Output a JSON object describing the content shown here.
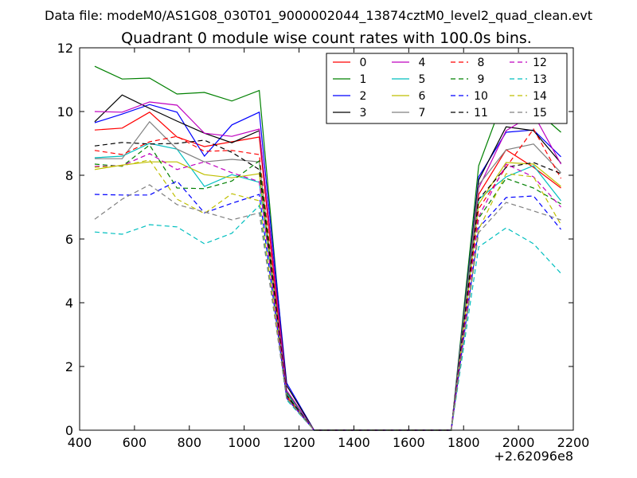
{
  "header": {
    "suptitle": "Data file: modeM0/AS1G08_030T01_9000002044_13874cztM0_level2_quad_clean.evt"
  },
  "chart_data": {
    "type": "line",
    "title": "Quadrant 0 module wise count rates with 100.0s bins.",
    "xlabel": "",
    "ylabel": "",
    "xlim": [
      400,
      2200
    ],
    "ylim": [
      0,
      12
    ],
    "x_offset_label": "+2.62096e8",
    "xticks": [
      400,
      600,
      800,
      1000,
      1200,
      1400,
      1600,
      1800,
      2000,
      2200
    ],
    "yticks": [
      0,
      2,
      4,
      6,
      8,
      10,
      12
    ],
    "x": [
      455,
      555,
      655,
      755,
      855,
      955,
      1055,
      1155,
      1255,
      1355,
      1455,
      1555,
      1655,
      1755,
      1855,
      1955,
      2055,
      2155
    ],
    "legend": {
      "placement": "top-right",
      "columns": 4
    },
    "series": [
      {
        "name": "0",
        "color": "#ff0000",
        "dash": "solid",
        "values": [
          9.42,
          9.48,
          9.98,
          9.2,
          8.9,
          9.05,
          9.2,
          1.05,
          0,
          0,
          0,
          0,
          0,
          0,
          7.4,
          8.8,
          8.25,
          7.6
        ]
      },
      {
        "name": "1",
        "color": "#008000",
        "dash": "solid",
        "values": [
          11.42,
          11.02,
          11.05,
          10.55,
          10.6,
          10.33,
          10.66,
          1.2,
          0,
          0,
          0,
          0,
          0,
          0,
          8.3,
          10.62,
          10.1,
          9.35
        ]
      },
      {
        "name": "2",
        "color": "#0000ff",
        "dash": "solid",
        "values": [
          9.65,
          9.92,
          10.22,
          9.98,
          8.6,
          9.58,
          9.98,
          1.48,
          0,
          0,
          0,
          0,
          0,
          0,
          7.95,
          9.35,
          9.42,
          8.58
        ]
      },
      {
        "name": "3",
        "color": "#000000",
        "dash": "solid",
        "values": [
          9.68,
          10.52,
          10.1,
          9.7,
          9.32,
          9.02,
          9.4,
          1.4,
          0,
          0,
          0,
          0,
          0,
          0,
          7.85,
          9.52,
          9.4,
          8.38
        ]
      },
      {
        "name": "4",
        "color": "#bf00bf",
        "dash": "solid",
        "values": [
          10.0,
          9.98,
          10.3,
          10.2,
          9.32,
          9.22,
          9.45,
          1.25,
          0,
          0,
          0,
          0,
          0,
          0,
          7.6,
          9.4,
          9.92,
          8.35
        ]
      },
      {
        "name": "5",
        "color": "#00bfbf",
        "dash": "solid",
        "values": [
          8.55,
          8.6,
          9.0,
          8.82,
          7.65,
          8.02,
          7.78,
          1.15,
          0,
          0,
          0,
          0,
          0,
          0,
          7.25,
          7.95,
          8.3,
          7.2
        ]
      },
      {
        "name": "6",
        "color": "#bfbf00",
        "dash": "solid",
        "values": [
          8.18,
          8.32,
          8.42,
          8.42,
          8.02,
          7.92,
          8.05,
          1.1,
          0,
          0,
          0,
          0,
          0,
          0,
          7.1,
          8.4,
          8.35,
          7.65
        ]
      },
      {
        "name": "7",
        "color": "#808080",
        "dash": "solid",
        "values": [
          8.52,
          8.52,
          9.68,
          8.82,
          8.42,
          8.5,
          8.42,
          1.12,
          0,
          0,
          0,
          0,
          0,
          0,
          7.7,
          8.8,
          8.98,
          8.08
        ]
      },
      {
        "name": "8",
        "color": "#ff0000",
        "dash": "dashed",
        "values": [
          8.78,
          8.65,
          9.05,
          9.22,
          8.75,
          8.78,
          8.65,
          1.08,
          0,
          0,
          0,
          0,
          0,
          0,
          6.95,
          8.25,
          9.45,
          7.9
        ]
      },
      {
        "name": "9",
        "color": "#008000",
        "dash": "dashed",
        "values": [
          8.35,
          8.28,
          8.95,
          7.6,
          7.58,
          7.82,
          8.45,
          1.05,
          0,
          0,
          0,
          0,
          0,
          0,
          6.65,
          7.9,
          7.6,
          7.1
        ]
      },
      {
        "name": "10",
        "color": "#0000ff",
        "dash": "dashed",
        "values": [
          7.4,
          7.38,
          7.38,
          7.82,
          6.82,
          7.12,
          7.4,
          1.0,
          0,
          0,
          0,
          0,
          0,
          0,
          6.35,
          7.3,
          7.35,
          6.3
        ]
      },
      {
        "name": "11",
        "color": "#000000",
        "dash": "dashed",
        "values": [
          8.92,
          9.03,
          8.98,
          9.0,
          9.1,
          8.72,
          8.18,
          1.1,
          0,
          0,
          0,
          0,
          0,
          0,
          7.25,
          8.25,
          8.4,
          8.05
        ]
      },
      {
        "name": "12",
        "color": "#bf00bf",
        "dash": "dashed",
        "values": [
          8.28,
          8.3,
          8.68,
          8.18,
          8.42,
          8.08,
          7.8,
          1.02,
          0,
          0,
          0,
          0,
          0,
          0,
          6.7,
          8.35,
          7.95,
          7.0
        ]
      },
      {
        "name": "13",
        "color": "#00bfbf",
        "dash": "dashed",
        "values": [
          6.22,
          6.15,
          6.45,
          6.38,
          5.85,
          6.18,
          7.05,
          0.95,
          0,
          0,
          0,
          0,
          0,
          0,
          5.75,
          6.35,
          5.85,
          4.92
        ]
      },
      {
        "name": "14",
        "color": "#bfbf00",
        "dash": "dashed",
        "values": [
          8.25,
          8.3,
          8.48,
          7.25,
          6.8,
          7.42,
          7.2,
          1.0,
          0,
          0,
          0,
          0,
          0,
          0,
          6.3,
          8.05,
          7.95,
          6.45
        ]
      },
      {
        "name": "15",
        "color": "#808080",
        "dash": "dashed",
        "values": [
          6.62,
          7.25,
          7.7,
          7.08,
          6.85,
          6.6,
          6.82,
          1.0,
          0,
          0,
          0,
          0,
          0,
          0,
          6.2,
          7.15,
          6.88,
          6.6
        ]
      }
    ]
  }
}
